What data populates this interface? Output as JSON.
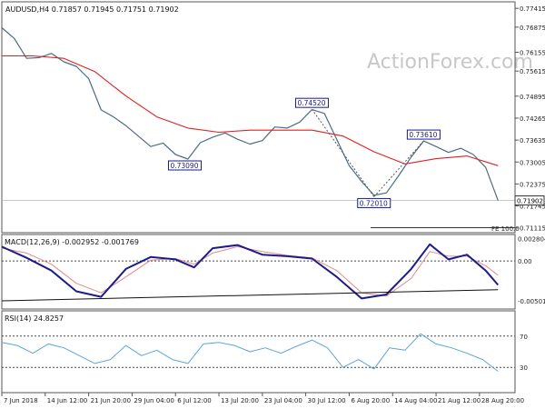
{
  "chart_data": {
    "type": "line",
    "price_panel": {
      "header": "AUDUSD,H4  0.71857 0.71945 0.71751 0.71902",
      "watermark": "ActionForex.com",
      "y_ticks": [
        "0.77415",
        "0.76875",
        "0.76155",
        "0.75615",
        "0.74895",
        "0.74265",
        "0.73635",
        "0.73005",
        "0.72375",
        "0.71745",
        "0.71115"
      ],
      "ylim": [
        0.7103,
        0.7755
      ],
      "current_price": "0.71902",
      "current_value": 0.71902,
      "fe_label": "FE 100.0",
      "fe_level": 0.7112,
      "price_series": {
        "name": "",
        "t": [
          0,
          4,
          8,
          12,
          16,
          20,
          24,
          28,
          32,
          36,
          40,
          44,
          48,
          52,
          56,
          60,
          64,
          68,
          72,
          76,
          80,
          84,
          88,
          92,
          96,
          100
        ],
        "values": [
          0.7686,
          0.7655,
          0.7598,
          0.76,
          0.7612,
          0.7588,
          0.7575,
          0.754,
          0.745,
          0.743,
          0.7405,
          0.7375,
          0.7345,
          0.7355,
          0.7322,
          0.7309,
          0.7356,
          0.7372,
          0.7384,
          0.7366,
          0.7352,
          0.7362,
          0.7401,
          0.7398,
          0.7415,
          0.7451
        ]
      },
      "price_series_2": {
        "name": "",
        "t": [
          100,
          104,
          108,
          112,
          116,
          120,
          124,
          128,
          132,
          136,
          140,
          144,
          148,
          152,
          156,
          160
        ],
        "values": [
          0.7451,
          0.744,
          0.7365,
          0.729,
          0.7245,
          0.7205,
          0.7212,
          0.7262,
          0.7315,
          0.7361,
          0.7345,
          0.7328,
          0.734,
          0.7322,
          0.7285,
          0.719
        ]
      },
      "ma_series": {
        "name": "",
        "t": [
          0,
          10,
          20,
          30,
          40,
          50,
          60,
          70,
          80,
          90,
          100,
          110,
          120,
          130,
          140,
          150,
          160
        ],
        "values": [
          0.7605,
          0.7605,
          0.7598,
          0.756,
          0.749,
          0.743,
          0.7398,
          0.7386,
          0.7392,
          0.7392,
          0.7392,
          0.7375,
          0.733,
          0.7295,
          0.731,
          0.7318,
          0.729
        ]
      },
      "annotations": [
        {
          "label": "0.73090",
          "t": 59,
          "value": 0.7309
        },
        {
          "label": "0.74520",
          "t": 100,
          "value": 0.7452
        },
        {
          "label": "0.72010",
          "t": 120,
          "value": 0.7201
        },
        {
          "label": "0.73610",
          "t": 136,
          "value": 0.7361
        }
      ]
    },
    "macd_panel": {
      "label": "MACD(12,26,9) -0.002952 -0.001769",
      "y_ticks": [
        "0.002804",
        "0.00",
        "-0.005019"
      ],
      "ylim": [
        -0.0058,
        0.0031
      ],
      "zero": 0.0,
      "macd_series": {
        "name": "",
        "t": [
          0,
          8,
          16,
          24,
          32,
          40,
          48,
          56,
          62,
          68,
          76,
          84,
          92,
          100,
          108,
          116,
          124,
          132,
          138,
          144,
          150,
          156,
          160
        ],
        "values": [
          0.0018,
          0.0004,
          -0.0012,
          -0.0038,
          -0.0045,
          -0.001,
          0.0005,
          0.0002,
          -0.0008,
          0.0016,
          0.002,
          0.0008,
          0.0006,
          0.0003,
          -0.002,
          -0.0047,
          -0.0042,
          -0.001,
          0.0021,
          0.0002,
          0.0008,
          -0.0012,
          -0.003
        ]
      },
      "signal_series": {
        "name": "",
        "t": [
          0,
          8,
          16,
          24,
          32,
          40,
          48,
          56,
          62,
          68,
          76,
          84,
          92,
          100,
          108,
          116,
          124,
          132,
          138,
          144,
          150,
          156,
          160
        ],
        "values": [
          0.0016,
          0.001,
          -0.0004,
          -0.0028,
          -0.004,
          -0.002,
          0.0001,
          0.0003,
          -0.0004,
          0.001,
          0.0018,
          0.0012,
          0.0007,
          0.0004,
          -0.0012,
          -0.004,
          -0.0044,
          -0.0022,
          0.0012,
          0.0006,
          0.0006,
          -0.0006,
          -0.0018
        ]
      },
      "trendline": {
        "t": [
          0,
          160
        ],
        "values": [
          -0.005,
          -0.0036
        ]
      }
    },
    "rsi_panel": {
      "label": "RSI(14) 24.8257",
      "y_ticks": [
        "70",
        "30"
      ],
      "ylim": [
        0,
        100
      ],
      "levels": [
        30,
        70
      ],
      "rsi_series": {
        "name": "",
        "t": [
          0,
          5,
          10,
          15,
          20,
          25,
          30,
          35,
          40,
          45,
          50,
          55,
          60,
          65,
          70,
          75,
          80,
          85,
          90,
          95,
          100,
          105,
          110,
          115,
          120,
          125,
          130,
          135,
          140,
          145,
          150,
          155,
          160
        ],
        "values": [
          62,
          58,
          48,
          60,
          55,
          45,
          35,
          40,
          58,
          45,
          52,
          40,
          35,
          60,
          62,
          58,
          50,
          55,
          48,
          57,
          65,
          55,
          30,
          40,
          28,
          55,
          52,
          73,
          60,
          55,
          48,
          40,
          25
        ]
      }
    },
    "x_ticks": [
      "7 Jun 2018",
      "14 Jun 12:00",
      "21 Jun 20:00",
      "29 Jun 04:00",
      "6 Jul 12:00",
      "13 Jul 20:00",
      "23 Jul 04:00",
      "30 Jul 12:00",
      "6 Aug 20:00",
      "14 Aug 04:00",
      "21 Aug 12:00",
      "28 Aug 20:00"
    ],
    "x_tick_t": [
      0,
      14,
      28,
      42,
      56,
      70,
      84,
      98,
      112,
      126,
      140,
      154
    ],
    "xlim": [
      0,
      164
    ],
    "colors": {
      "price": "#4a6e80",
      "ma": "#e02020",
      "macd": "#1c1c8c",
      "signal": "#e08a8a",
      "rsi": "#5aa5e0",
      "annotation": "#1a1a8a",
      "grid": "#444444",
      "watermark": "#c8c8c8"
    }
  }
}
